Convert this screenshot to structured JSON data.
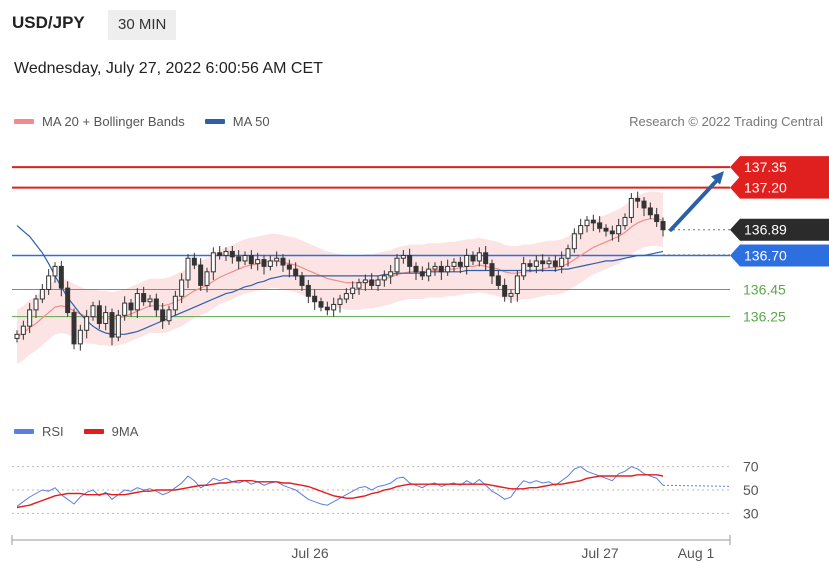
{
  "header": {
    "symbol": "USD/JPY",
    "timeframe": "30 MIN"
  },
  "datetime": "Wednesday, July 27, 2022 6:00:56 AM CET",
  "credit": "Research © 2022 Trading Central",
  "legend": [
    {
      "label": "MA 20 + Bollinger Bands",
      "color": "#f28b8b"
    },
    {
      "label": "MA 50",
      "color": "#2e5fa8"
    }
  ],
  "rsi_legend": [
    {
      "label": "RSI",
      "color": "#5b7fe0"
    },
    {
      "label": "9MA",
      "color": "#e01e1e"
    }
  ],
  "colors": {
    "resistance": "#e0201e",
    "pivot": "#2e6fe0",
    "support": "#5aa84a",
    "current": "#2b2b2b",
    "candle": "#333333",
    "band": "#fde4e4",
    "arrow": "#2b5fa8"
  },
  "chart_data": [
    {
      "type": "candlestick",
      "title": "USD/JPY",
      "ylim": [
        135.6,
        137.55
      ],
      "x_ticks": [
        "Jul 26",
        "Jul 27",
        "Aug 1"
      ],
      "levels": [
        {
          "value": 137.35,
          "label": "137.35",
          "kind": "resistance"
        },
        {
          "value": 137.2,
          "label": "137.20",
          "kind": "resistance"
        },
        {
          "value": 136.89,
          "label": "136.89",
          "kind": "current"
        },
        {
          "value": 136.7,
          "label": "136.70",
          "kind": "pivot"
        },
        {
          "value": 136.45,
          "label": "136.45",
          "kind": "support"
        },
        {
          "value": 136.25,
          "label": "136.25",
          "kind": "support"
        }
      ],
      "series": [
        {
          "role": "close",
          "values": [
            136.12,
            136.18,
            136.3,
            136.38,
            136.45,
            136.55,
            136.62,
            136.46,
            136.28,
            136.05,
            136.15,
            136.25,
            136.33,
            136.2,
            136.28,
            136.1,
            136.26,
            136.35,
            136.3,
            136.42,
            136.36,
            136.38,
            136.3,
            136.22,
            136.3,
            136.4,
            136.52,
            136.68,
            136.63,
            136.48,
            136.58,
            136.72,
            136.7,
            136.73,
            136.69,
            136.66,
            136.7,
            136.64,
            136.67,
            136.62,
            136.66,
            136.68,
            136.63,
            136.6,
            136.55,
            136.48,
            136.4,
            136.36,
            136.32,
            136.3,
            136.34,
            136.38,
            136.42,
            136.46,
            136.5,
            136.52,
            136.48,
            136.52,
            136.55,
            136.58,
            136.68,
            136.7,
            136.62,
            136.58,
            136.55,
            136.6,
            136.62,
            136.58,
            136.62,
            136.65,
            136.62,
            136.7,
            136.66,
            136.72,
            136.64,
            136.55,
            136.48,
            136.4,
            136.42,
            136.55,
            136.64,
            136.62,
            136.66,
            136.64,
            136.66,
            136.62,
            136.68,
            136.75,
            136.86,
            136.92,
            136.96,
            136.94,
            136.9,
            136.88,
            136.86,
            136.92,
            136.98,
            137.12,
            137.1,
            137.05,
            137.0,
            136.95,
            136.89
          ]
        },
        {
          "role": "ma20",
          "values": [
            136.1,
            136.13,
            136.17,
            136.2,
            136.24,
            136.28,
            136.32,
            136.33,
            136.32,
            136.29,
            136.27,
            136.25,
            136.25,
            136.24,
            136.24,
            136.23,
            136.24,
            136.25,
            136.27,
            136.29,
            136.31,
            136.33,
            136.33,
            136.33,
            136.34,
            136.36,
            136.38,
            136.41,
            136.44,
            136.46,
            136.48,
            136.51,
            136.54,
            136.56,
            136.58,
            136.6,
            136.62,
            136.63,
            136.64,
            136.65,
            136.66,
            136.66,
            136.65,
            136.64,
            136.63,
            136.61,
            136.59,
            136.57,
            136.55,
            136.53,
            136.52,
            136.51,
            136.5,
            136.5,
            136.5,
            136.51,
            136.51,
            136.52,
            136.53,
            136.54,
            136.56,
            136.57,
            136.58,
            136.58,
            136.58,
            136.59,
            136.59,
            136.59,
            136.6,
            136.6,
            136.61,
            136.62,
            136.62,
            136.63,
            136.62,
            136.61,
            136.6,
            136.58,
            136.57,
            136.57,
            136.58,
            136.58,
            136.59,
            136.6,
            136.61,
            136.61,
            136.62,
            136.64,
            136.67,
            136.7,
            136.73,
            136.76,
            136.78,
            136.8,
            136.82,
            136.84,
            136.87,
            136.91,
            136.94,
            136.96,
            136.97,
            136.97,
            136.96
          ]
        },
        {
          "role": "ma50",
          "values": [
            136.92,
            136.88,
            136.84,
            136.78,
            136.72,
            136.64,
            136.55,
            136.47,
            136.39,
            136.33,
            136.27,
            136.22,
            136.18,
            136.15,
            136.13,
            136.12,
            136.12,
            136.12,
            136.13,
            136.14,
            136.16,
            136.18,
            136.2,
            136.22,
            136.24,
            136.26,
            136.28,
            136.3,
            136.32,
            136.34,
            136.36,
            136.38,
            136.4,
            136.42,
            136.43,
            136.45,
            136.47,
            136.48,
            136.5,
            136.51,
            136.53,
            136.54,
            136.55,
            136.55,
            136.55,
            136.55,
            136.55,
            136.55,
            136.55,
            136.55,
            136.55,
            136.55,
            136.55,
            136.55,
            136.55,
            136.55,
            136.55,
            136.55,
            136.56,
            136.56,
            136.57,
            136.57,
            136.57,
            136.57,
            136.57,
            136.58,
            136.58,
            136.58,
            136.58,
            136.58,
            136.58,
            136.59,
            136.59,
            136.59,
            136.59,
            136.59,
            136.59,
            136.59,
            136.59,
            136.59,
            136.59,
            136.59,
            136.59,
            136.59,
            136.59,
            136.59,
            136.6,
            136.6,
            136.61,
            136.62,
            136.63,
            136.64,
            136.65,
            136.66,
            136.66,
            136.67,
            136.68,
            136.69,
            136.7,
            136.7,
            136.71,
            136.72,
            136.73
          ]
        }
      ],
      "band_width": 0.2
    },
    {
      "type": "line",
      "title": "RSI",
      "ylim": [
        20,
        80
      ],
      "y_ticks": [
        70,
        50,
        30
      ],
      "series": [
        {
          "name": "RSI",
          "values": [
            36,
            40,
            44,
            47,
            50,
            49,
            52,
            46,
            42,
            38,
            44,
            48,
            50,
            45,
            48,
            42,
            46,
            50,
            49,
            52,
            50,
            51,
            49,
            46,
            48,
            52,
            56,
            62,
            58,
            52,
            55,
            60,
            58,
            60,
            57,
            56,
            58,
            55,
            57,
            54,
            56,
            57,
            54,
            52,
            50,
            46,
            42,
            40,
            38,
            37,
            40,
            43,
            46,
            49,
            52,
            53,
            50,
            53,
            54,
            56,
            60,
            61,
            56,
            54,
            52,
            55,
            56,
            53,
            55,
            56,
            54,
            58,
            55,
            59,
            54,
            49,
            46,
            42,
            44,
            52,
            58,
            56,
            58,
            56,
            57,
            54,
            58,
            62,
            68,
            70,
            66,
            64,
            62,
            60,
            58,
            64,
            66,
            70,
            68,
            64,
            62,
            60,
            54
          ]
        },
        {
          "name": "9MA",
          "values": [
            35,
            36,
            37,
            39,
            41,
            43,
            45,
            46,
            47,
            47,
            47,
            46,
            46,
            46,
            47,
            46,
            46,
            46,
            47,
            48,
            49,
            49,
            50,
            50,
            50,
            50,
            51,
            52,
            53,
            54,
            54,
            55,
            56,
            56,
            57,
            58,
            58,
            58,
            57,
            57,
            57,
            57,
            56,
            56,
            55,
            54,
            53,
            51,
            49,
            47,
            45,
            44,
            43,
            43,
            44,
            45,
            47,
            48,
            50,
            51,
            53,
            54,
            55,
            55,
            55,
            55,
            55,
            55,
            55,
            55,
            55,
            55,
            55,
            55,
            55,
            54,
            53,
            52,
            51,
            51,
            51,
            52,
            52,
            53,
            54,
            55,
            55,
            56,
            57,
            58,
            60,
            61,
            62,
            62,
            62,
            62,
            62,
            62,
            63,
            63,
            63,
            63,
            62
          ]
        }
      ]
    }
  ]
}
